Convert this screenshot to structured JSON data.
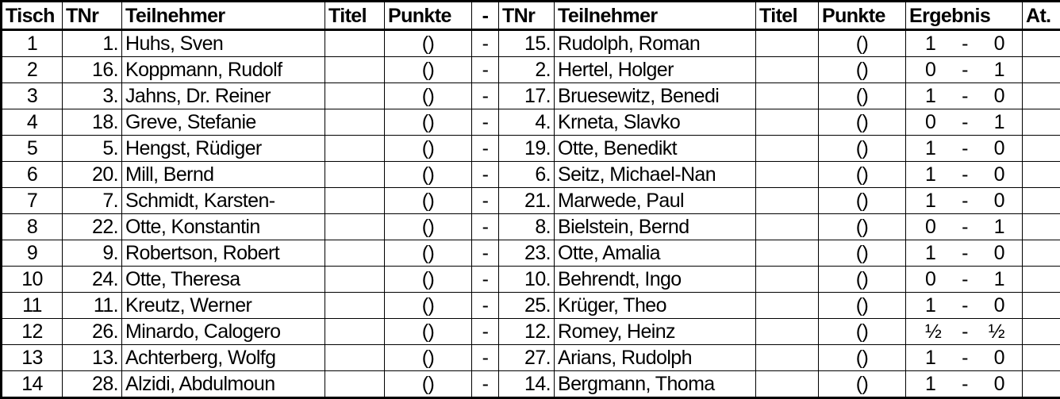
{
  "headers": {
    "tisch": "Tisch",
    "tnr": "TNr",
    "teilnehmer": "Teilnehmer",
    "titel": "Titel",
    "punkte": "Punkte",
    "sep": "-",
    "tnr2": "TNr",
    "teilnehmer2": "Teilnehmer",
    "titel2": "Titel",
    "punkte2": "Punkte",
    "ergebnis": "Ergebnis",
    "at": "At."
  },
  "rows": [
    {
      "tisch": "1",
      "tnr": "1.",
      "name": "Huhs, Sven",
      "titel": "",
      "punkte": "()",
      "sep": "-",
      "tnr2": "15.",
      "name2": "Rudolph, Roman",
      "titel2": "",
      "punkte2": "()",
      "res_w": "1",
      "res_sep": "-",
      "res_b": "0",
      "at": ""
    },
    {
      "tisch": "2",
      "tnr": "16.",
      "name": "Koppmann, Rudolf",
      "titel": "",
      "punkte": "()",
      "sep": "-",
      "tnr2": "2.",
      "name2": "Hertel, Holger",
      "titel2": "",
      "punkte2": "()",
      "res_w": "0",
      "res_sep": "-",
      "res_b": "1",
      "at": ""
    },
    {
      "tisch": "3",
      "tnr": "3.",
      "name": "Jahns, Dr. Reiner",
      "titel": "",
      "punkte": "()",
      "sep": "-",
      "tnr2": "17.",
      "name2": "Bruesewitz, Benedi",
      "titel2": "",
      "punkte2": "()",
      "res_w": "1",
      "res_sep": "-",
      "res_b": "0",
      "at": ""
    },
    {
      "tisch": "4",
      "tnr": "18.",
      "name": "Greve, Stefanie",
      "titel": "",
      "punkte": "()",
      "sep": "-",
      "tnr2": "4.",
      "name2": "Krneta, Slavko",
      "titel2": "",
      "punkte2": "()",
      "res_w": "0",
      "res_sep": "-",
      "res_b": "1",
      "at": ""
    },
    {
      "tisch": "5",
      "tnr": "5.",
      "name": "Hengst, Rüdiger",
      "titel": "",
      "punkte": "()",
      "sep": "-",
      "tnr2": "19.",
      "name2": "Otte, Benedikt",
      "titel2": "",
      "punkte2": "()",
      "res_w": "1",
      "res_sep": "-",
      "res_b": "0",
      "at": ""
    },
    {
      "tisch": "6",
      "tnr": "20.",
      "name": "Mill, Bernd",
      "titel": "",
      "punkte": "()",
      "sep": "-",
      "tnr2": "6.",
      "name2": "Seitz, Michael-Nan",
      "titel2": "",
      "punkte2": "()",
      "res_w": "1",
      "res_sep": "-",
      "res_b": "0",
      "at": ""
    },
    {
      "tisch": "7",
      "tnr": "7.",
      "name": "Schmidt, Karsten-",
      "titel": "",
      "punkte": "()",
      "sep": "-",
      "tnr2": "21.",
      "name2": "Marwede, Paul",
      "titel2": "",
      "punkte2": "()",
      "res_w": "1",
      "res_sep": "-",
      "res_b": "0",
      "at": ""
    },
    {
      "tisch": "8",
      "tnr": "22.",
      "name": "Otte, Konstantin",
      "titel": "",
      "punkte": "()",
      "sep": "-",
      "tnr2": "8.",
      "name2": "Bielstein, Bernd",
      "titel2": "",
      "punkte2": "()",
      "res_w": "0",
      "res_sep": "-",
      "res_b": "1",
      "at": ""
    },
    {
      "tisch": "9",
      "tnr": "9.",
      "name": "Robertson, Robert",
      "titel": "",
      "punkte": "()",
      "sep": "-",
      "tnr2": "23.",
      "name2": "Otte, Amalia",
      "titel2": "",
      "punkte2": "()",
      "res_w": "1",
      "res_sep": "-",
      "res_b": "0",
      "at": ""
    },
    {
      "tisch": "10",
      "tnr": "24.",
      "name": "Otte, Theresa",
      "titel": "",
      "punkte": "()",
      "sep": "-",
      "tnr2": "10.",
      "name2": "Behrendt, Ingo",
      "titel2": "",
      "punkte2": "()",
      "res_w": "0",
      "res_sep": "-",
      "res_b": "1",
      "at": ""
    },
    {
      "tisch": "11",
      "tnr": "11.",
      "name": "Kreutz, Werner",
      "titel": "",
      "punkte": "()",
      "sep": "-",
      "tnr2": "25.",
      "name2": "Krüger, Theo",
      "titel2": "",
      "punkte2": "()",
      "res_w": "1",
      "res_sep": "-",
      "res_b": "0",
      "at": ""
    },
    {
      "tisch": "12",
      "tnr": "26.",
      "name": "Minardo, Calogero",
      "titel": "",
      "punkte": "()",
      "sep": "-",
      "tnr2": "12.",
      "name2": "Romey, Heinz",
      "titel2": "",
      "punkte2": "()",
      "res_w": "½",
      "res_sep": "-",
      "res_b": "½",
      "at": ""
    },
    {
      "tisch": "13",
      "tnr": "13.",
      "name": "Achterberg, Wolfg",
      "titel": "",
      "punkte": "()",
      "sep": "-",
      "tnr2": "27.",
      "name2": "Arians, Rudolph",
      "titel2": "",
      "punkte2": "()",
      "res_w": "1",
      "res_sep": "-",
      "res_b": "0",
      "at": ""
    },
    {
      "tisch": "14",
      "tnr": "28.",
      "name": "Alzidi, Abdulmoun",
      "titel": "",
      "punkte": "()",
      "sep": "-",
      "tnr2": "14.",
      "name2": "Bergmann, Thoma",
      "titel2": "",
      "punkte2": "()",
      "res_w": "1",
      "res_sep": "-",
      "res_b": "0",
      "at": ""
    }
  ]
}
